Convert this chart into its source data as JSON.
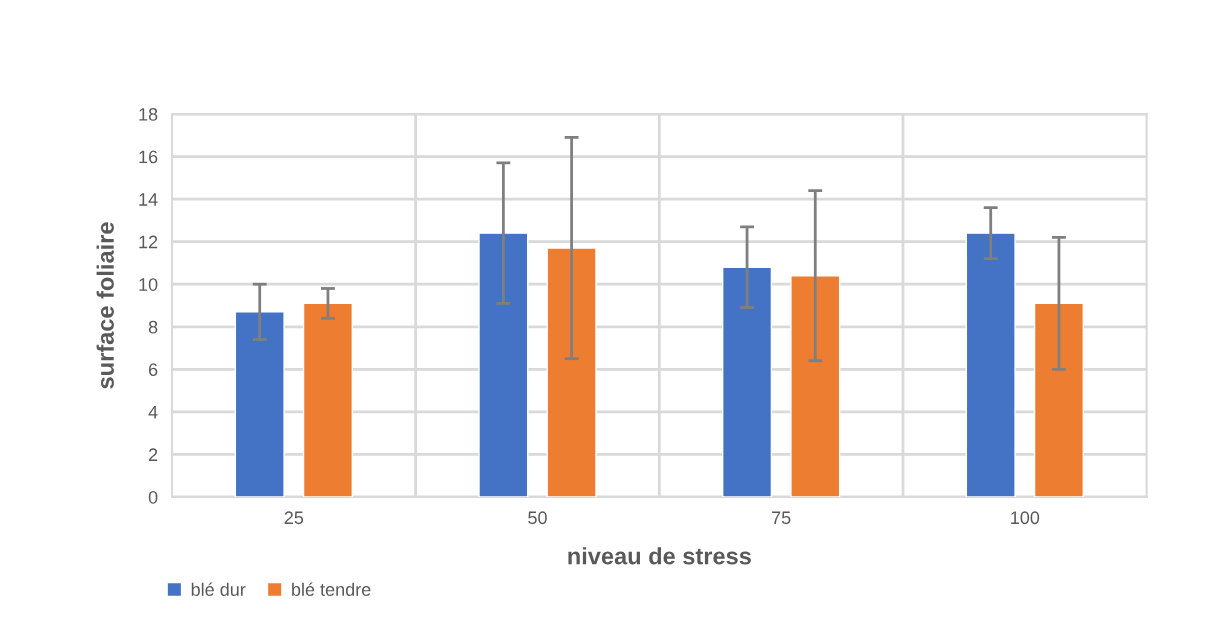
{
  "chart_data": {
    "type": "bar",
    "xlabel": "niveau de stress",
    "ylabel": "surface foliaire",
    "categories": [
      "25",
      "50",
      "75",
      "100"
    ],
    "series": [
      {
        "name": "blé dur",
        "color": "#4472c4",
        "values": [
          8.7,
          12.4,
          10.8,
          12.4
        ],
        "errors": [
          1.3,
          3.3,
          1.9,
          1.2
        ]
      },
      {
        "name": "blé tendre",
        "color": "#ed7d31",
        "values": [
          9.1,
          11.7,
          10.4,
          9.1
        ],
        "errors": [
          0.7,
          5.2,
          4.0,
          3.1
        ]
      }
    ],
    "ylim": [
      0,
      18
    ],
    "yticks": [
      0,
      2,
      4,
      6,
      8,
      10,
      12,
      14,
      16,
      18
    ],
    "grid": true,
    "legend": "bottom left"
  }
}
